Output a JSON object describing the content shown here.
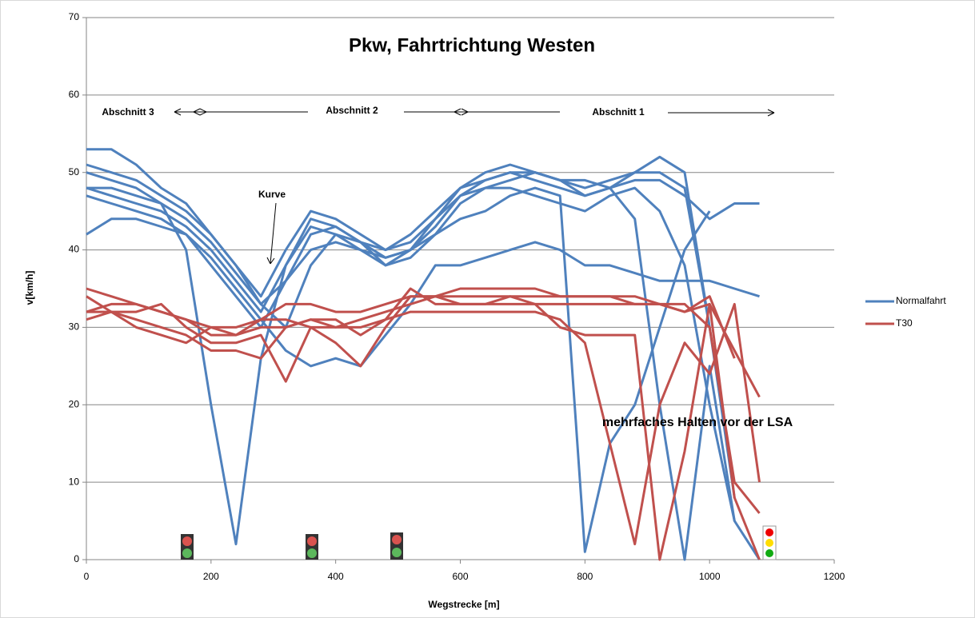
{
  "chart_data": {
    "type": "line",
    "title": "Pkw, Fahrtrichtung Westen",
    "x_label": "Wegstrecke  [m]",
    "y_label": "v[km/h]",
    "annotations": [
      "Abschnitt 3",
      "Abschnitt 2",
      "Abschnitt 1",
      "Kurve",
      "mehrfaches Halten vor der LSA"
    ],
    "x": [
      0,
      40,
      80,
      120,
      160,
      200,
      240,
      280,
      320,
      360,
      400,
      440,
      480,
      520,
      560,
      600,
      640,
      680,
      720,
      760,
      800,
      840,
      880,
      920,
      960,
      1000,
      1040,
      1080
    ],
    "series": [
      {
        "name": "Normalfahrt",
        "color": "#4f81bd",
        "runs": [
          [
            53,
            53,
            51,
            48,
            46,
            42,
            38,
            34,
            40,
            45,
            44,
            42,
            40,
            41,
            44,
            48,
            50,
            51,
            50,
            49,
            48,
            49,
            50,
            50,
            48,
            30,
            8,
            null
          ],
          [
            48,
            47,
            46,
            45,
            43,
            40,
            36,
            32,
            38,
            43,
            42,
            40,
            38,
            39,
            42,
            46,
            48,
            49,
            50,
            49,
            47,
            48,
            49,
            49,
            47,
            44,
            46,
            46
          ],
          [
            42,
            44,
            44,
            43,
            42,
            38,
            34,
            30,
            36,
            42,
            43,
            41,
            38,
            40,
            44,
            47,
            48,
            48,
            47,
            46,
            45,
            47,
            48,
            45,
            38,
            20,
            5,
            0
          ],
          [
            50,
            49,
            48,
            46,
            40,
            20,
            2,
            26,
            38,
            44,
            43,
            41,
            39,
            40,
            43,
            47,
            49,
            50,
            49,
            48,
            47,
            48,
            50,
            52,
            50,
            30,
            null,
            null
          ],
          [
            48,
            48,
            47,
            46,
            44,
            41,
            37,
            33,
            36,
            40,
            41,
            40,
            39,
            40,
            42,
            44,
            45,
            47,
            48,
            47,
            1,
            15,
            20,
            30,
            40,
            45,
            null,
            null
          ],
          [
            47,
            46,
            45,
            44,
            42,
            39,
            35,
            31,
            27,
            25,
            26,
            25,
            29,
            33,
            38,
            38,
            39,
            40,
            41,
            40,
            38,
            38,
            37,
            36,
            36,
            36,
            35,
            34
          ],
          [
            51,
            50,
            49,
            47,
            45,
            42,
            38,
            33,
            30,
            38,
            42,
            41,
            40,
            42,
            45,
            48,
            49,
            50,
            50,
            49,
            49,
            48,
            44,
            20,
            0,
            25,
            5,
            null
          ]
        ]
      },
      {
        "name": "T30",
        "color": "#c0504d",
        "runs": [
          [
            35,
            34,
            33,
            32,
            31,
            30,
            30,
            31,
            31,
            30,
            30,
            31,
            32,
            33,
            34,
            34,
            34,
            34,
            34,
            34,
            34,
            34,
            34,
            33,
            32,
            34,
            26,
            null
          ],
          [
            32,
            33,
            33,
            32,
            31,
            29,
            29,
            30,
            30,
            31,
            30,
            30,
            31,
            35,
            33,
            33,
            33,
            33,
            33,
            33,
            33,
            33,
            33,
            33,
            33,
            30,
            10,
            6
          ],
          [
            31,
            32,
            32,
            33,
            30,
            28,
            28,
            29,
            23,
            30,
            28,
            25,
            30,
            34,
            34,
            35,
            35,
            35,
            35,
            34,
            34,
            34,
            33,
            33,
            32,
            33,
            27,
            21
          ],
          [
            32,
            32,
            31,
            30,
            29,
            27,
            27,
            26,
            30,
            31,
            31,
            29,
            31,
            32,
            32,
            32,
            32,
            32,
            32,
            31,
            28,
            15,
            2,
            20,
            28,
            24,
            33,
            10
          ],
          [
            34,
            32,
            30,
            29,
            28,
            30,
            29,
            31,
            33,
            33,
            32,
            32,
            33,
            34,
            34,
            33,
            33,
            34,
            33,
            30,
            29,
            29,
            29,
            0,
            14,
            33,
            8,
            0
          ]
        ]
      }
    ],
    "xlim": [
      0,
      1200
    ],
    "xticks": [
      0,
      200,
      400,
      600,
      800,
      1000,
      1200
    ],
    "ylim": [
      0,
      70
    ],
    "yticks": [
      0,
      10,
      20,
      30,
      40,
      50,
      60,
      70
    ],
    "grid": true,
    "legend": "right"
  }
}
